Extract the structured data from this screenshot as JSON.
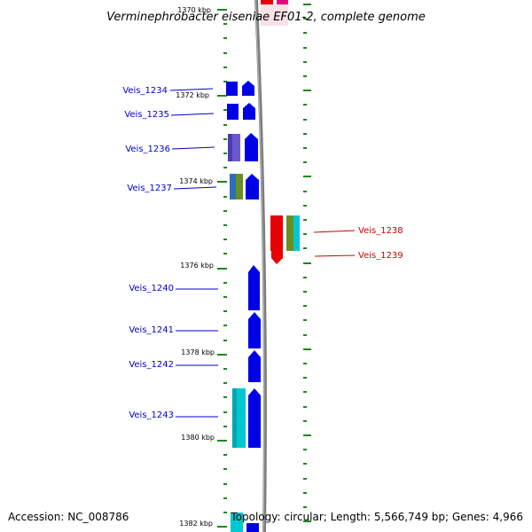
{
  "title": "Verminephrobacter eiseniae EF01-2, complete genome",
  "footer": {
    "accession": "Accession: NC_008786",
    "topology": "Topology: circular; Length: 5,566,749 bp; Genes: 4,966"
  },
  "colors": {
    "backbone": "#8c8c8c",
    "tick": "#1b8a1b",
    "forward_label": "#0000cc",
    "reverse_label": "#cc0000"
  },
  "scale": {
    "unit": "kbp",
    "major_ticks": [
      {
        "kbp": 1370,
        "label": "1370 kbp"
      },
      {
        "kbp": 1372,
        "label": "1372 kbp"
      },
      {
        "kbp": 1374,
        "label": "1374 kbp"
      },
      {
        "kbp": 1376,
        "label": "1376 kbp"
      },
      {
        "kbp": 1378,
        "label": "1378 kbp"
      },
      {
        "kbp": 1380,
        "label": "1380 kbp"
      },
      {
        "kbp": 1382,
        "label": "1382 kbp"
      }
    ]
  },
  "genes": [
    {
      "id": "Veis_1234",
      "label": "Veis_1234",
      "strand": "forward"
    },
    {
      "id": "Veis_1235",
      "label": "Veis_1235",
      "strand": "forward"
    },
    {
      "id": "Veis_1236",
      "label": "Veis_1236",
      "strand": "forward"
    },
    {
      "id": "Veis_1237",
      "label": "Veis_1237",
      "strand": "forward"
    },
    {
      "id": "Veis_1238",
      "label": "Veis_1238",
      "strand": "reverse"
    },
    {
      "id": "Veis_1239",
      "label": "Veis_1239",
      "strand": "reverse"
    },
    {
      "id": "Veis_1240",
      "label": "Veis_1240",
      "strand": "forward"
    },
    {
      "id": "Veis_1241",
      "label": "Veis_1241",
      "strand": "forward"
    },
    {
      "id": "Veis_1242",
      "label": "Veis_1242",
      "strand": "forward"
    },
    {
      "id": "Veis_1243",
      "label": "Veis_1243",
      "strand": "forward"
    }
  ]
}
